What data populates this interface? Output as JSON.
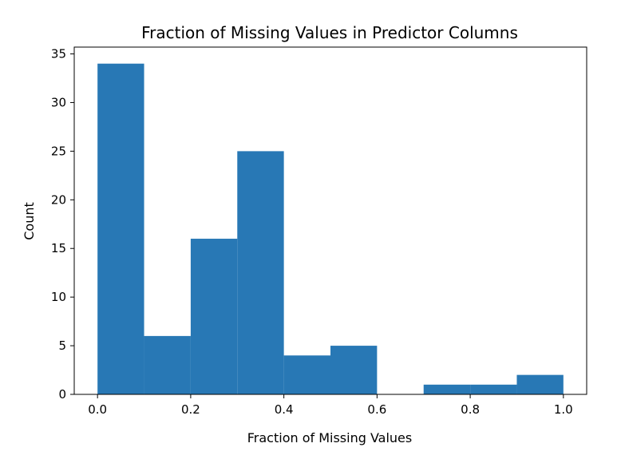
{
  "chart_data": {
    "type": "bar",
    "subtype": "histogram",
    "title": "Fraction of Missing Values in Predictor Columns",
    "xlabel": "Fraction of Missing Values",
    "ylabel": "Count",
    "xlim": [
      -0.05,
      1.05
    ],
    "ylim": [
      0,
      35.7
    ],
    "xticks": [
      0.0,
      0.2,
      0.4,
      0.6,
      0.8,
      1.0
    ],
    "xtick_labels": [
      "0.0",
      "0.2",
      "0.4",
      "0.6",
      "0.8",
      "1.0"
    ],
    "yticks": [
      0,
      5,
      10,
      15,
      20,
      25,
      30,
      35
    ],
    "ytick_labels": [
      "0",
      "5",
      "10",
      "15",
      "20",
      "25",
      "30",
      "35"
    ],
    "bin_edges": [
      0.0,
      0.1,
      0.2,
      0.3,
      0.4,
      0.5,
      0.6,
      0.7,
      0.8,
      0.9,
      1.0
    ],
    "values": [
      34,
      6,
      16,
      25,
      4,
      5,
      0,
      1,
      1,
      2
    ],
    "bar_color": "#2878b5",
    "grid": false,
    "legend": "none"
  }
}
